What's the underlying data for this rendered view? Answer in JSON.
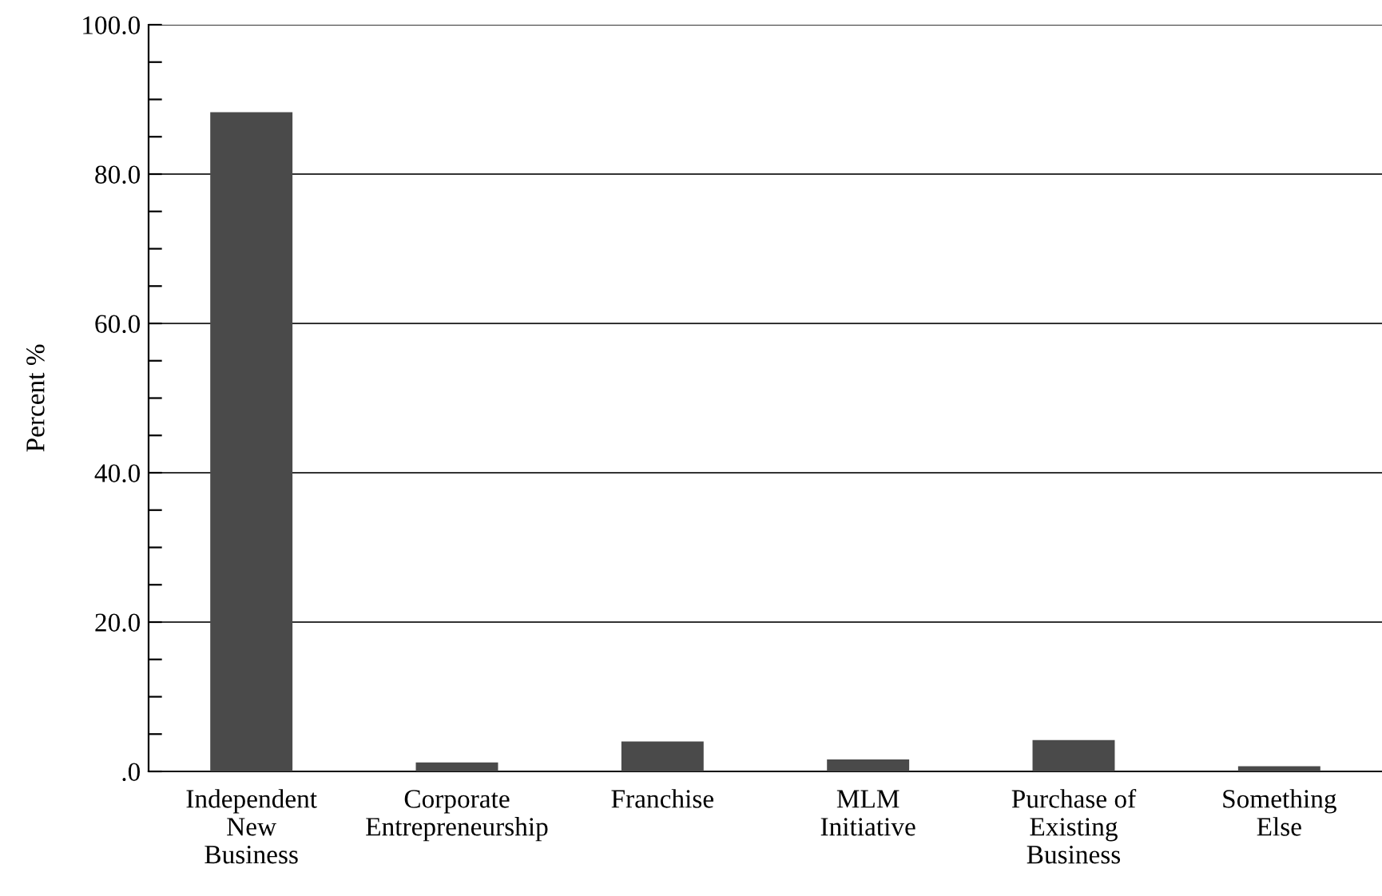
{
  "chart_data": {
    "type": "bar",
    "ylabel": "Percent %",
    "categories": [
      "Independent\nNew\nBusiness",
      "Corporate\nEntrepreneurship",
      "Franchise",
      "MLM\nInitiative",
      "Purchase of\nExisting\nBusiness",
      "Something\nElse"
    ],
    "values": [
      88.3,
      1.2,
      4.0,
      1.6,
      4.2,
      0.7
    ],
    "color": "#4a4a4a",
    "ylim": [
      0,
      100
    ],
    "yticks": [
      {
        "value": 0,
        "label": ".0"
      },
      {
        "value": 5,
        "label": null
      },
      {
        "value": 10,
        "label": null
      },
      {
        "value": 15,
        "label": null
      },
      {
        "value": 20,
        "label": "20.0"
      },
      {
        "value": 25,
        "label": null
      },
      {
        "value": 30,
        "label": null
      },
      {
        "value": 35,
        "label": null
      },
      {
        "value": 40,
        "label": "40.0"
      },
      {
        "value": 45,
        "label": null
      },
      {
        "value": 50,
        "label": null
      },
      {
        "value": 55,
        "label": null
      },
      {
        "value": 60,
        "label": "60.0"
      },
      {
        "value": 65,
        "label": null
      },
      {
        "value": 70,
        "label": null
      },
      {
        "value": 75,
        "label": null
      },
      {
        "value": 80,
        "label": "80.0"
      },
      {
        "value": 85,
        "label": null
      },
      {
        "value": 90,
        "label": null
      },
      {
        "value": 95,
        "label": null
      },
      {
        "value": 100,
        "label": "100.0"
      }
    ],
    "grid": "y"
  }
}
